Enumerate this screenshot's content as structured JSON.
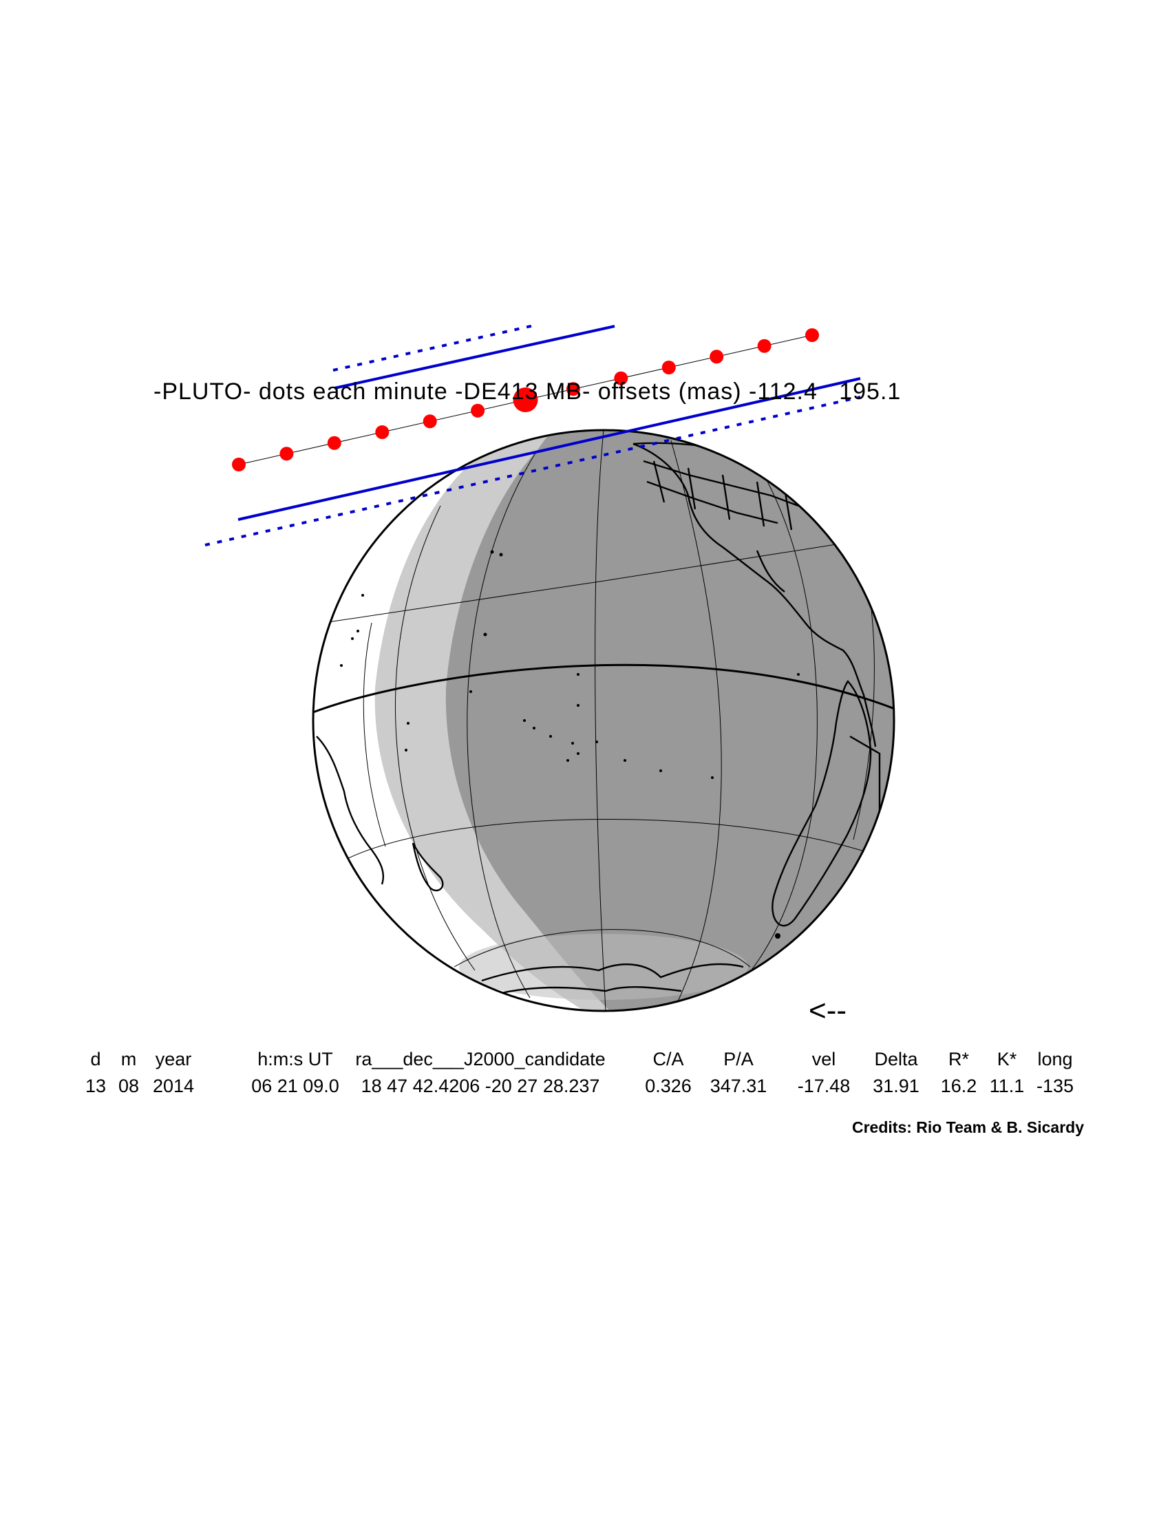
{
  "title": "-PLUTO- dots each minute -DE413 MB- offsets (mas) -112.4   195.1",
  "direction_arrow": "<--",
  "table": {
    "headers": [
      "d",
      "m",
      "year",
      "h:m:s UT",
      "ra___dec___J2000_candidate",
      "C/A",
      "P/A",
      "vel",
      "Delta",
      "R*",
      "K*",
      "long"
    ],
    "values": [
      "13",
      "08",
      "2014",
      "06 21 09.0",
      "18 47 42.4206 -20 27 28.237",
      "0.326",
      "347.31",
      "-17.48",
      "31.91",
      "16.2",
      "11.1",
      "-135"
    ]
  },
  "credits": "Credits: Rio Team & B. Sicardy",
  "colors": {
    "track_dot": "#ff0000",
    "shadow_limit": "#0000cc",
    "night": "#999999",
    "twilight": "#cccccc",
    "day": "#ffffff",
    "coast": "#000000"
  },
  "map": {
    "projection": "orthographic",
    "central_longitude": -135,
    "central_latitude": 0,
    "dot_interval": "1 minute",
    "track_dot_count": 13,
    "central_instant_dot": "larger dot at closest approach"
  }
}
